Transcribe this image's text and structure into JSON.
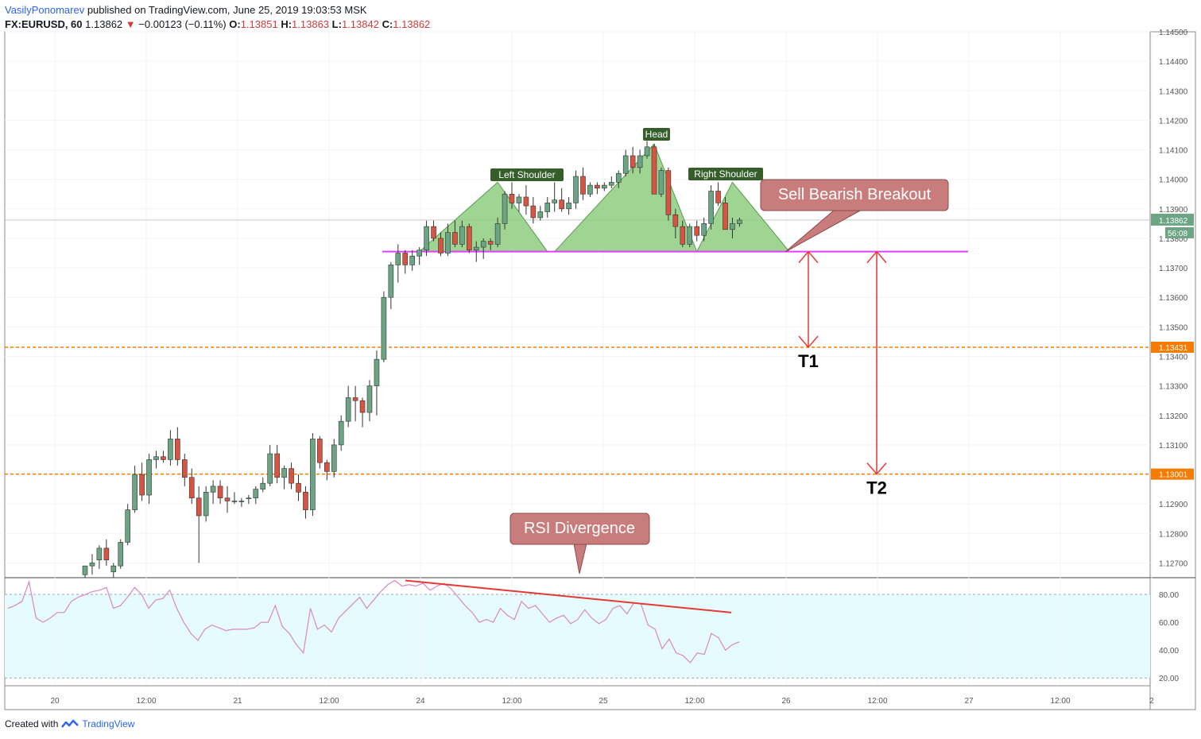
{
  "header": {
    "author": "VasilyPonomarev",
    "published": "published on TradingView.com, June 25, 2019 19:03:53 MSK",
    "symbol": "FX:EURUSD, 60",
    "last": "1.13862",
    "change": "−0.00123 (−0.11%)",
    "o_label": "O:",
    "o": "1.13851",
    "h_label": "H:",
    "h": "1.13863",
    "l_label": "L:",
    "l": "1.13842",
    "c_label": "C:",
    "c": "1.13862"
  },
  "footer": {
    "created": "Created with",
    "brand": "TradingView"
  },
  "colors": {
    "up": "#6ba583",
    "down": "#d75442",
    "neckline": "#e040fb",
    "level": "#f57c00",
    "arrow": "#e53935",
    "pattern_fill": "#8fcc7f",
    "callout": "#c97c7c",
    "rsi_line": "#d987c2",
    "rsi_band": "#e6fbfd"
  },
  "chart_data": [
    {
      "type": "candlestick",
      "symbol": "FX:EURUSD",
      "interval": "60",
      "ylim": [
        1.1265,
        1.145
      ],
      "y_ticks": [
        "1.12700",
        "1.12800",
        "1.12900",
        "1.13000",
        "1.13100",
        "1.13200",
        "1.13300",
        "1.13400",
        "1.13500",
        "1.13600",
        "1.13700",
        "1.13800",
        "1.13900",
        "1.14000",
        "1.14100",
        "1.14200",
        "1.14300",
        "1.14400",
        "1.14500"
      ],
      "x_ticks": [
        "20",
        "12:00",
        "21",
        "12:00",
        "24",
        "12:00",
        "25",
        "12:00",
        "26",
        "12:00",
        "27",
        "12:00",
        "2"
      ],
      "price_label": "1.13862",
      "countdown_label": "56:08",
      "levels": [
        {
          "name": "T1 level",
          "value": 1.13431,
          "label": "1.13431"
        },
        {
          "name": "T2 level",
          "value": 1.13001,
          "label": "1.13001"
        }
      ],
      "neckline": 1.13755,
      "candles": [
        [
          1.1266,
          1.1269,
          1.1265,
          1.1269
        ],
        [
          1.1269,
          1.1273,
          1.1266,
          1.127
        ],
        [
          1.1271,
          1.1276,
          1.1268,
          1.1275
        ],
        [
          1.1275,
          1.1278,
          1.1269,
          1.1271
        ],
        [
          1.1267,
          1.127,
          1.1265,
          1.1269
        ],
        [
          1.1269,
          1.1278,
          1.1268,
          1.1277
        ],
        [
          1.1277,
          1.129,
          1.1276,
          1.1288
        ],
        [
          1.1288,
          1.1303,
          1.1287,
          1.13
        ],
        [
          1.13,
          1.1304,
          1.1291,
          1.1293
        ],
        [
          1.1293,
          1.1307,
          1.129,
          1.1305
        ],
        [
          1.1305,
          1.1308,
          1.1302,
          1.1306
        ],
        [
          1.1306,
          1.1308,
          1.1304,
          1.1305
        ],
        [
          1.1305,
          1.1315,
          1.1303,
          1.1312
        ],
        [
          1.1312,
          1.1316,
          1.1303,
          1.1305
        ],
        [
          1.1305,
          1.1307,
          1.1296,
          1.1299
        ],
        [
          1.1299,
          1.1302,
          1.129,
          1.1292
        ],
        [
          1.1292,
          1.1296,
          1.127,
          1.1286
        ],
        [
          1.1286,
          1.1296,
          1.1284,
          1.1294
        ],
        [
          1.1294,
          1.1298,
          1.129,
          1.1296
        ],
        [
          1.1296,
          1.1298,
          1.129,
          1.1292
        ],
        [
          1.1292,
          1.1296,
          1.1287,
          1.1291
        ],
        [
          1.1291,
          1.1294,
          1.129,
          1.1291
        ],
        [
          1.1291,
          1.1292,
          1.1289,
          1.1291
        ],
        [
          1.1292,
          1.1293,
          1.129,
          1.1292
        ],
        [
          1.1292,
          1.1296,
          1.129,
          1.1295
        ],
        [
          1.1295,
          1.1299,
          1.1294,
          1.1297
        ],
        [
          1.1297,
          1.131,
          1.1296,
          1.1307
        ],
        [
          1.1307,
          1.131,
          1.1297,
          1.1299
        ],
        [
          1.1299,
          1.1303,
          1.1295,
          1.1302
        ],
        [
          1.1302,
          1.1304,
          1.1295,
          1.1297
        ],
        [
          1.1297,
          1.13,
          1.1291,
          1.1294
        ],
        [
          1.1294,
          1.1296,
          1.1285,
          1.1288
        ],
        [
          1.1288,
          1.1314,
          1.1286,
          1.1312
        ],
        [
          1.1312,
          1.1313,
          1.1302,
          1.1304
        ],
        [
          1.1304,
          1.1305,
          1.1298,
          1.1301
        ],
        [
          1.1301,
          1.1312,
          1.1299,
          1.131
        ],
        [
          1.131,
          1.132,
          1.1308,
          1.1318
        ],
        [
          1.1318,
          1.133,
          1.1316,
          1.1326
        ],
        [
          1.1326,
          1.133,
          1.1318,
          1.1325
        ],
        [
          1.1325,
          1.1326,
          1.1316,
          1.1321
        ],
        [
          1.1321,
          1.1332,
          1.1318,
          1.133
        ],
        [
          1.133,
          1.1342,
          1.132,
          1.1339
        ],
        [
          1.1339,
          1.1362,
          1.1338,
          1.136
        ],
        [
          1.136,
          1.1372,
          1.1356,
          1.1371
        ],
        [
          1.1371,
          1.1378,
          1.1365,
          1.1375
        ],
        [
          1.1375,
          1.1376,
          1.1368,
          1.1371
        ],
        [
          1.1371,
          1.1376,
          1.1369,
          1.1374
        ],
        [
          1.1374,
          1.1377,
          1.1371,
          1.1376
        ],
        [
          1.1376,
          1.1386,
          1.1374,
          1.1384
        ],
        [
          1.1384,
          1.1386,
          1.1379,
          1.138
        ],
        [
          1.138,
          1.1382,
          1.1374,
          1.1375
        ],
        [
          1.1375,
          1.1385,
          1.1374,
          1.1382
        ],
        [
          1.1382,
          1.1386,
          1.1377,
          1.1378
        ],
        [
          1.1378,
          1.1386,
          1.1377,
          1.1384
        ],
        [
          1.1384,
          1.1385,
          1.1375,
          1.1376
        ],
        [
          1.1376,
          1.1379,
          1.1372,
          1.1377
        ],
        [
          1.1377,
          1.138,
          1.1373,
          1.1379
        ],
        [
          1.1379,
          1.138,
          1.1376,
          1.1378
        ],
        [
          1.1378,
          1.1387,
          1.1377,
          1.1385
        ],
        [
          1.1385,
          1.1396,
          1.1383,
          1.1395
        ],
        [
          1.1395,
          1.1399,
          1.139,
          1.1392
        ],
        [
          1.1392,
          1.1395,
          1.1389,
          1.1394
        ],
        [
          1.1394,
          1.1398,
          1.1388,
          1.1391
        ],
        [
          1.1391,
          1.1394,
          1.1385,
          1.1387
        ],
        [
          1.1387,
          1.1391,
          1.1386,
          1.1389
        ],
        [
          1.1389,
          1.1394,
          1.1387,
          1.1392
        ],
        [
          1.1392,
          1.1399,
          1.1389,
          1.1393
        ],
        [
          1.1393,
          1.1397,
          1.1389,
          1.139
        ],
        [
          1.139,
          1.1394,
          1.1388,
          1.1392
        ],
        [
          1.1392,
          1.1403,
          1.139,
          1.1401
        ],
        [
          1.1401,
          1.1404,
          1.1393,
          1.1395
        ],
        [
          1.1395,
          1.1399,
          1.1394,
          1.1398
        ],
        [
          1.1398,
          1.1399,
          1.1395,
          1.1397
        ],
        [
          1.1397,
          1.1399,
          1.1396,
          1.1398
        ],
        [
          1.1398,
          1.1401,
          1.1397,
          1.1399
        ],
        [
          1.1399,
          1.1403,
          1.1397,
          1.1402
        ],
        [
          1.1402,
          1.141,
          1.1401,
          1.1408
        ],
        [
          1.1408,
          1.1411,
          1.1402,
          1.1404
        ],
        [
          1.1404,
          1.141,
          1.1402,
          1.1408
        ],
        [
          1.1408,
          1.1413,
          1.1407,
          1.1411
        ],
        [
          1.1411,
          1.1412,
          1.1395,
          1.1395
        ],
        [
          1.1395,
          1.1404,
          1.1394,
          1.1403
        ],
        [
          1.1403,
          1.1404,
          1.1386,
          1.1388
        ],
        [
          1.1388,
          1.139,
          1.138,
          1.1384
        ],
        [
          1.1384,
          1.1386,
          1.1377,
          1.1378
        ],
        [
          1.1378,
          1.1385,
          1.1377,
          1.1384
        ],
        [
          1.1384,
          1.1386,
          1.1379,
          1.1381
        ],
        [
          1.1381,
          1.1387,
          1.1379,
          1.1385
        ],
        [
          1.1385,
          1.1398,
          1.1383,
          1.1396
        ],
        [
          1.1396,
          1.1399,
          1.1391,
          1.1392
        ],
        [
          1.1392,
          1.1394,
          1.1383,
          1.1383
        ],
        [
          1.1383,
          1.1387,
          1.138,
          1.1385
        ],
        [
          1.1385,
          1.1387,
          1.1384,
          1.13862
        ]
      ],
      "annotations": [
        {
          "text": "Left Shoulder"
        },
        {
          "text": "Head"
        },
        {
          "text": "Right Shoulder"
        },
        {
          "text": "Sell Bearish Breakout"
        },
        {
          "text": "T1"
        },
        {
          "text": "T2"
        }
      ]
    },
    {
      "type": "line",
      "name": "RSI",
      "ylim": [
        15,
        92
      ],
      "y_ticks": [
        "20.00",
        "40.00",
        "60.00",
        "80.00"
      ],
      "bands": [
        20,
        80
      ],
      "values": [
        70,
        72,
        75,
        89,
        63,
        60,
        63,
        67,
        67,
        75,
        78,
        80,
        82,
        83,
        85,
        70,
        72,
        78,
        85,
        80,
        70,
        76,
        77,
        83,
        70,
        60,
        52,
        47,
        55,
        58,
        56,
        54,
        55,
        55,
        55,
        56,
        60,
        60,
        72,
        57,
        52,
        44,
        38,
        70,
        55,
        58,
        53,
        63,
        68,
        73,
        78,
        70,
        76,
        82,
        87,
        90,
        86,
        87,
        86,
        88,
        83,
        86,
        88,
        84,
        78,
        72,
        67,
        60,
        62,
        60,
        70,
        65,
        62,
        75,
        70,
        72,
        66,
        60,
        63,
        65,
        59,
        62,
        69,
        63,
        59,
        62,
        70,
        72,
        66,
        74,
        73,
        58,
        55,
        41,
        48,
        38,
        36,
        31,
        38,
        37,
        52,
        49,
        40,
        44,
        46
      ],
      "divergence_line": [
        [
          0,
          90
        ],
        [
          1,
          67
        ]
      ],
      "annotation": "RSI Divergence"
    }
  ]
}
